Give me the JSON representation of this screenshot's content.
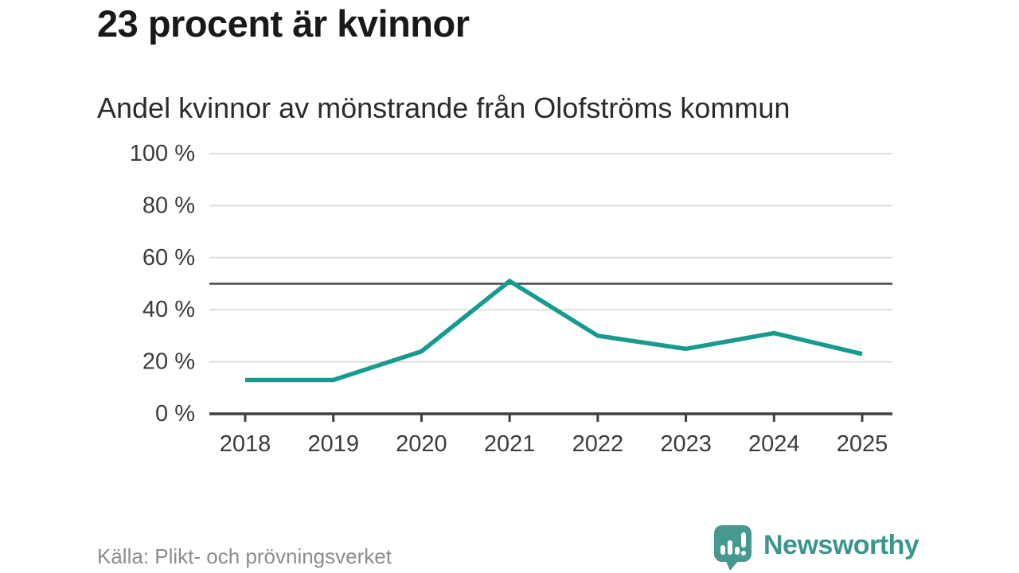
{
  "chart_data": {
    "type": "line",
    "title": "23 procent är kvinnor",
    "subtitle": "Andel kvinnor av mönstrande från Olofströms kommun",
    "source": "Källa: Plikt- och prövningsverket",
    "x": [
      "2018",
      "2019",
      "2020",
      "2021",
      "2022",
      "2023",
      "2024",
      "2025"
    ],
    "series": [
      {
        "name": "Andel kvinnor av mönstrande",
        "values": [
          13,
          13,
          24,
          51,
          30,
          25,
          31,
          23
        ],
        "color": "#169b8e"
      }
    ],
    "unit": "%",
    "ylim": [
      0,
      100
    ],
    "yticks": [
      0,
      20,
      40,
      60,
      80,
      100
    ],
    "ytick_labels": [
      "0 %",
      "20 %",
      "40 %",
      "60 %",
      "80 %",
      "100 %"
    ],
    "reference_line": {
      "value": 50,
      "color": "#4a4a4a"
    },
    "grid": true,
    "legend": "none",
    "colors": {
      "grid": "#dedede",
      "axis": "#3f3f3f",
      "tick_label": "#3c3c3c"
    }
  },
  "footer": {
    "brand": {
      "name": "Newsworthy",
      "color": "#3c968e",
      "icon": "newsworthy-chart-bubble-icon"
    }
  }
}
